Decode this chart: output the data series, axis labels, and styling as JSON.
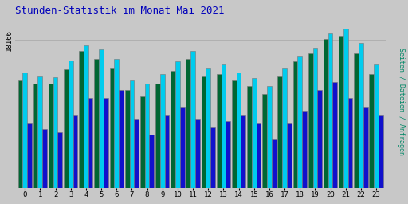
{
  "title": "Stunden-Statistik im Monat Mai 2021",
  "title_color": "#0000bb",
  "background_color": "#c8c8c8",
  "plot_bg_color": "#c8c8c8",
  "ylabel": "Seiten / Dateien / Anfragen",
  "ylabel_color": "#008866",
  "ytick_label": "18166",
  "ytick_value": 18166,
  "hours": [
    0,
    1,
    2,
    3,
    4,
    5,
    6,
    7,
    8,
    9,
    10,
    11,
    12,
    13,
    14,
    15,
    16,
    17,
    18,
    19,
    20,
    21,
    22,
    23
  ],
  "seiten": [
    13200,
    12800,
    12800,
    14600,
    16800,
    15800,
    14800,
    12000,
    11200,
    12800,
    14400,
    15800,
    13800,
    14000,
    13200,
    12500,
    11500,
    13800,
    15500,
    16500,
    18300,
    18700,
    16500,
    14000
  ],
  "dateien": [
    14200,
    13800,
    13600,
    15600,
    17500,
    17000,
    15800,
    13200,
    12800,
    14000,
    15500,
    16800,
    14800,
    15200,
    14200,
    13500,
    12500,
    14800,
    16200,
    17200,
    19000,
    19500,
    17800,
    15200
  ],
  "anfragen": [
    8000,
    7200,
    6800,
    9000,
    11000,
    11000,
    12000,
    8500,
    6500,
    9000,
    10000,
    8500,
    7500,
    8200,
    9000,
    8000,
    6000,
    8000,
    9500,
    12000,
    13000,
    11000,
    10000,
    9000
  ],
  "color_seiten": "#006633",
  "color_dateien": "#00ccee",
  "color_anfragen": "#1111cc",
  "bar_width": 0.3,
  "ylim_max": 21000,
  "ylim_min": 0,
  "grid_color": "#b0b0b0",
  "grid_yticks": [
    18166
  ]
}
